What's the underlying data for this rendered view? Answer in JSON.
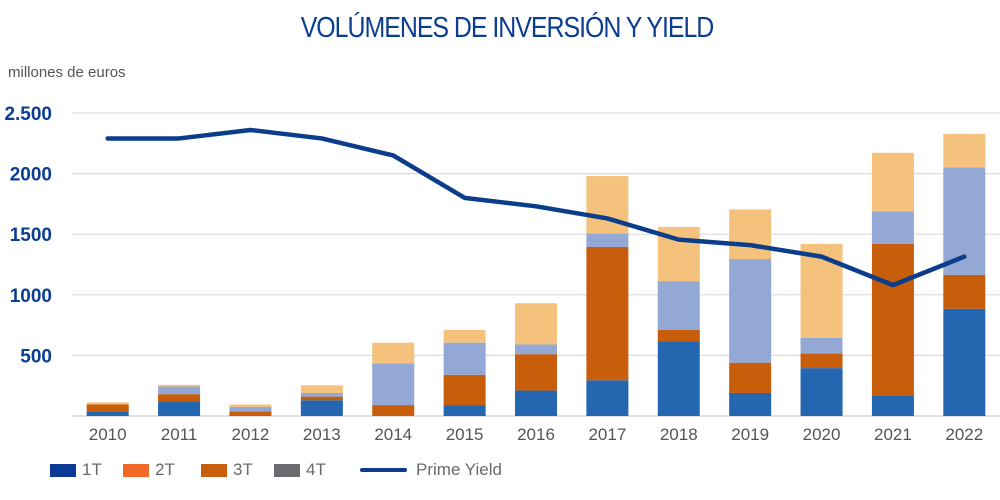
{
  "chart_data": {
    "type": "bar",
    "stacked": true,
    "title": "VOLÚMENES DE INVERSIÓN Y YIELD",
    "ylabel": "millones de euros",
    "xlabel": "",
    "ylim": [
      0,
      2500
    ],
    "grid": true,
    "legend_position": "bottom-left",
    "yticks": [
      {
        "value": 500,
        "label": "500"
      },
      {
        "value": 1000,
        "label": "1000"
      },
      {
        "value": 1500,
        "label": "1500"
      },
      {
        "value": 2000,
        "label": "2000"
      },
      {
        "value": 2500,
        "label": "2.500"
      }
    ],
    "categories": [
      "2010",
      "2011",
      "2012",
      "2013",
      "2014",
      "2015",
      "2016",
      "2017",
      "2018",
      "2019",
      "2020",
      "2021",
      "2022"
    ],
    "series": [
      {
        "name": "1T",
        "kind": "bar",
        "legend_color": "#0b3b95",
        "bar_color": "#2467b0",
        "values": [
          40,
          120,
          0,
          130,
          0,
          90,
          210,
          295,
          615,
          190,
          395,
          170,
          885
        ]
      },
      {
        "name": "3T",
        "kind": "bar",
        "legend_color": "#c85f0f",
        "bar_color": "#c85d0c",
        "values": [
          55,
          60,
          38,
          30,
          90,
          250,
          300,
          1100,
          95,
          250,
          120,
          1250,
          280
        ]
      },
      {
        "name": "2T",
        "kind": "bar",
        "legend_color": "#f26a2a",
        "bar_color": "#94a8d6",
        "values": [
          0,
          63,
          38,
          30,
          345,
          265,
          80,
          110,
          400,
          855,
          130,
          267,
          885
        ]
      },
      {
        "name": "4T",
        "kind": "bar",
        "legend_color": "#6a6c6f",
        "bar_color": "#f4c27c",
        "values": [
          17,
          14,
          19,
          63,
          170,
          105,
          340,
          475,
          450,
          410,
          775,
          485,
          278
        ]
      },
      {
        "name": "Prime Yield",
        "kind": "line",
        "color": "#0b3d8a",
        "values": [
          2290,
          2290,
          2360,
          2290,
          2150,
          1800,
          1730,
          1630,
          1455,
          1410,
          1315,
          1080,
          1315
        ]
      }
    ],
    "legend": [
      {
        "name": "1T",
        "type": "swatch",
        "color": "#0b3b95"
      },
      {
        "name": "2T",
        "type": "swatch",
        "color": "#f26a2a"
      },
      {
        "name": "3T",
        "type": "swatch",
        "color": "#c85f0f"
      },
      {
        "name": "4T",
        "type": "swatch",
        "color": "#6a6c6f"
      },
      {
        "name": "Prime Yield",
        "type": "line",
        "color": "#0b3d8a"
      }
    ]
  },
  "colors": {
    "title": "#0b3d91",
    "ytick": "#0b3d91",
    "xtick": "#555555",
    "grid": "#dcdcdc"
  }
}
